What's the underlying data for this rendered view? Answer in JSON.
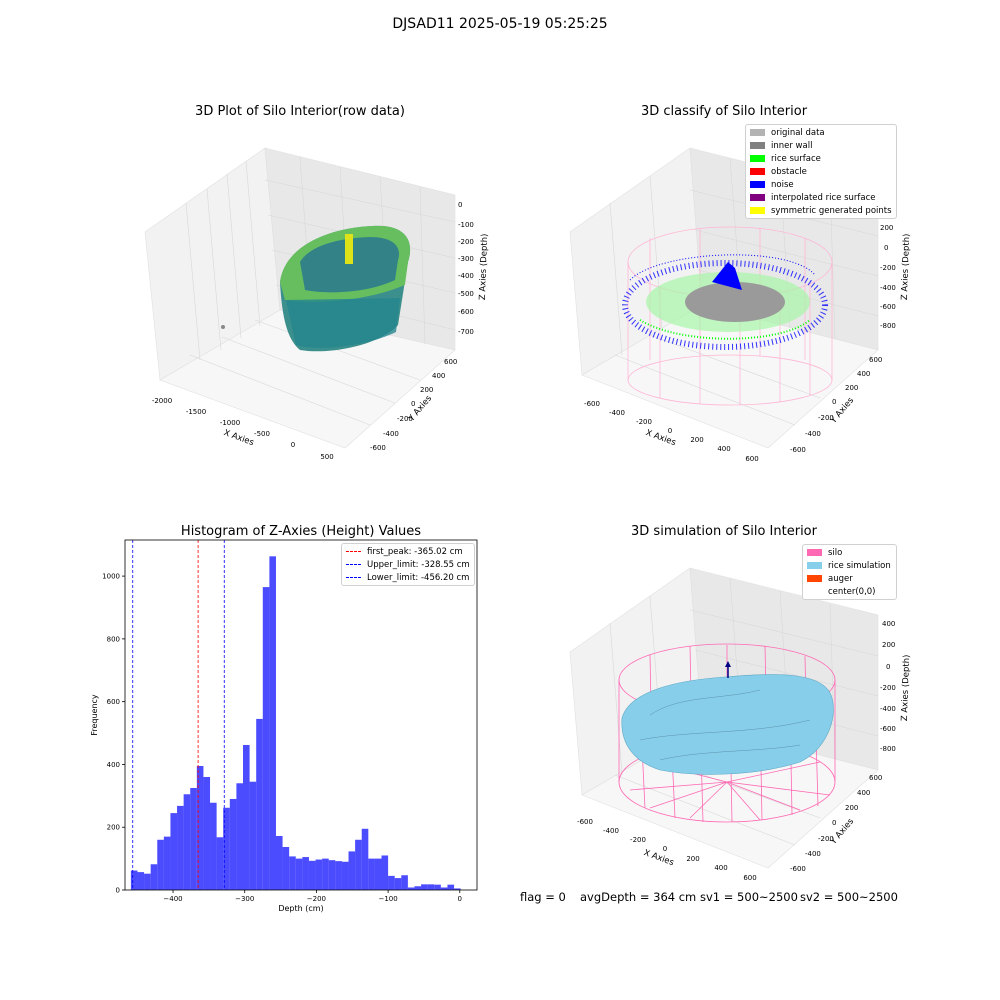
{
  "figure": {
    "suptitle": "DJSAD11 2025-05-19 05:25:25",
    "footer": {
      "flag": "flag = 0",
      "avg_depth": "avgDepth = 364 cm",
      "sv1": "sv1 = 500~2500",
      "sv2": "sv2 = 500~2500"
    }
  },
  "chart_data": [
    {
      "type": "scatter",
      "title": "3D Plot of Silo Interior(row data)",
      "xlabel": "X Axies",
      "ylabel": "Y Axies",
      "zlabel": "Z Axies (Depth)",
      "x_ticks": [
        "-2000",
        "-1500",
        "-1000",
        "-500",
        "0",
        "500"
      ],
      "y_ticks": [
        "-600",
        "-400",
        "-200",
        "0",
        "200",
        "400",
        "600"
      ],
      "z_ticks": [
        "0",
        "-100",
        "-200",
        "-300",
        "-400",
        "-500",
        "-600",
        "-700"
      ],
      "colormap": "viridis",
      "grid": true
    },
    {
      "type": "scatter",
      "title": "3D classify of Silo Interior",
      "xlabel": "X Axies",
      "ylabel": "Y Axies",
      "zlabel": "Z Axies (Depth)",
      "x_ticks": [
        "-600",
        "-400",
        "-200",
        "0",
        "200",
        "400",
        "600"
      ],
      "y_ticks": [
        "-600",
        "-400",
        "-200",
        "0",
        "200",
        "400",
        "600"
      ],
      "z_ticks": [
        "200",
        "0",
        "-200",
        "-400",
        "-600",
        "-800"
      ],
      "legend_position": "top-right",
      "legend": [
        {
          "label": "original data",
          "color": "#b3b3b3"
        },
        {
          "label": "inner wall",
          "color": "#808080"
        },
        {
          "label": "rice surface",
          "color": "#00ff00"
        },
        {
          "label": "obstacle",
          "color": "#ff0000"
        },
        {
          "label": "noise",
          "color": "#0000ff"
        },
        {
          "label": "interpolated rice surface",
          "color": "#800080"
        },
        {
          "label": "symmetric generated points",
          "color": "#ffff00"
        }
      ],
      "grid": true
    },
    {
      "type": "bar",
      "title": "Histogram of Z-Axies (Height) Values",
      "xlabel": "Depth (cm)",
      "ylabel": "Frequency",
      "xlim": [
        -467,
        24
      ],
      "ylim": [
        0,
        1115
      ],
      "x_ticks": [
        -400,
        -300,
        -200,
        -100,
        0
      ],
      "y_ticks": [
        0,
        200,
        400,
        600,
        800,
        1000
      ],
      "bin_width": 9.2,
      "bin_starts": [
        -458.8,
        -449.6,
        -440.4,
        -431.2,
        -422.0,
        -412.8,
        -403.6,
        -394.4,
        -385.2,
        -376.0,
        -366.8,
        -357.6,
        -348.4,
        -339.2,
        -330.0,
        -320.8,
        -311.6,
        -302.4,
        -293.2,
        -284.0,
        -274.8,
        -265.6,
        -256.4,
        -247.2,
        -238.0,
        -228.8,
        -219.6,
        -210.4,
        -201.2,
        -192.0,
        -182.8,
        -173.6,
        -164.4,
        -155.2,
        -146.0,
        -136.8,
        -127.6,
        -118.4,
        -109.2,
        -100.0,
        -90.8,
        -81.6,
        -72.4,
        -63.2,
        -54.0,
        -44.8,
        -35.6,
        -26.4,
        -17.2,
        -8.0
      ],
      "values": [
        62,
        57,
        52,
        82,
        160,
        170,
        245,
        268,
        305,
        325,
        395,
        360,
        278,
        168,
        262,
        290,
        340,
        462,
        345,
        545,
        965,
        1063,
        172,
        137,
        107,
        100,
        105,
        93,
        97,
        100,
        95,
        92,
        90,
        123,
        160,
        195,
        100,
        100,
        110,
        45,
        38,
        47,
        8,
        12,
        18,
        18,
        17,
        8,
        17,
        5
      ],
      "color": "#0000ff",
      "vlines": [
        {
          "label": "first_peak: -365.02 cm",
          "x": -365.02,
          "color": "#ff0000"
        },
        {
          "label": "Upper_limit: -328.55 cm",
          "x": -328.55,
          "color": "#0000ff"
        },
        {
          "label": "Lower_limit: -456.20 cm",
          "x": -456.2,
          "color": "#0000ff"
        }
      ],
      "legend_position": "top-right"
    },
    {
      "type": "area",
      "title": "3D simulation of Silo Interior",
      "xlabel": "X Axies",
      "ylabel": "Y Axies",
      "zlabel": "Z Axies (Depth)",
      "x_ticks": [
        "-600",
        "-400",
        "-200",
        "0",
        "200",
        "400",
        "600"
      ],
      "y_ticks": [
        "-600",
        "-400",
        "-200",
        "0",
        "200",
        "400",
        "600"
      ],
      "z_ticks": [
        "400",
        "200",
        "0",
        "-200",
        "-400",
        "-600",
        "-800"
      ],
      "legend_position": "top-right",
      "legend": [
        {
          "label": "silo",
          "color": "#ff69b4"
        },
        {
          "label": "rice simulation",
          "color": "#87ceeb"
        },
        {
          "label": "auger",
          "color": "#ff4500"
        },
        {
          "label": "center(0,0)",
          "color": "#ffffff"
        }
      ],
      "grid": true
    }
  ]
}
